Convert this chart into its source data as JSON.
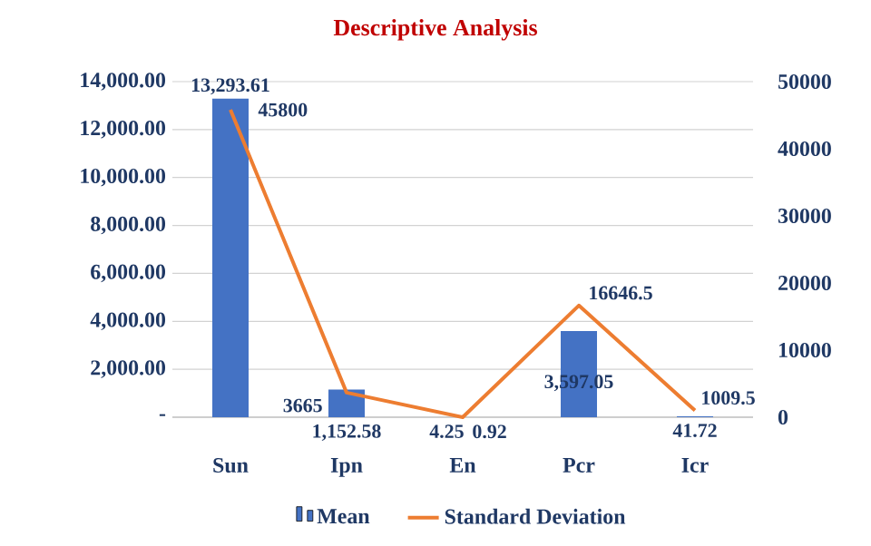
{
  "chart_data": {
    "type": "bar",
    "title": "Descriptive Analysis",
    "categories": [
      "Sun",
      "Ipn",
      "En",
      "Pcr",
      "Icr"
    ],
    "series": [
      {
        "name": "Mean",
        "color": "#4472c4",
        "values": [
          13293.61,
          1152.58,
          4.25,
          3597.05,
          41.72
        ],
        "value_labels": [
          "13,293.61",
          "1,152.58",
          "4.25",
          "3,597.05",
          "41.72"
        ]
      },
      {
        "name": "Standard Deviation",
        "type": "line",
        "axis": "y2",
        "color": "#ed7d31",
        "values": [
          45800,
          3665,
          0.92,
          16646.5,
          1009.5
        ],
        "value_labels": [
          "45800",
          "3665",
          "0.92",
          "16646.5",
          "1009.5"
        ]
      }
    ],
    "ylim": [
      0,
      14000
    ],
    "yticks": [
      {
        "value": 0,
        "label": "-"
      },
      {
        "value": 2000,
        "label": "2,000.00"
      },
      {
        "value": 4000,
        "label": "4,000.00"
      },
      {
        "value": 6000,
        "label": "6,000.00"
      },
      {
        "value": 8000,
        "label": "8,000.00"
      },
      {
        "value": 10000,
        "label": "10,000.00"
      },
      {
        "value": 12000,
        "label": "12,000.00"
      },
      {
        "value": 14000,
        "label": "14,000.00"
      }
    ],
    "y2lim": [
      0,
      50000
    ],
    "y2ticks": [
      0,
      10000,
      20000,
      30000,
      40000,
      50000
    ],
    "grid": "y",
    "legend": "bottom"
  }
}
